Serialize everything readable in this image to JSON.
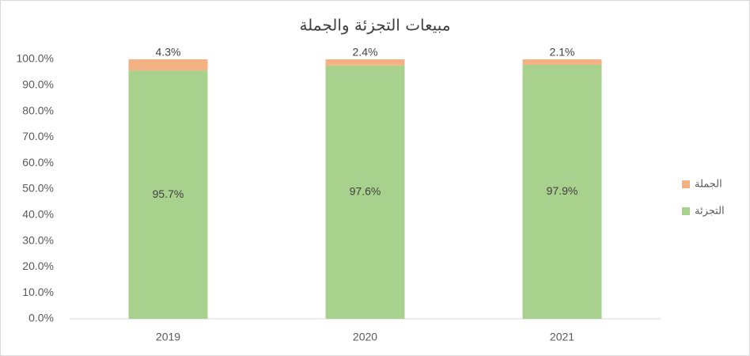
{
  "chart_data": {
    "type": "stacked_bar",
    "title": "مبيعات التجزئة والجملة",
    "categories": [
      "2019",
      "2020",
      "2021"
    ],
    "series": [
      {
        "name": "التجزئة",
        "color": "#a9d18e",
        "values": [
          95.7,
          97.6,
          97.9
        ],
        "value_labels": [
          "95.7%",
          "97.6%",
          "97.9%"
        ]
      },
      {
        "name": "الجملة",
        "color": "#f4b183",
        "values": [
          4.3,
          2.4,
          2.1
        ],
        "value_labels": [
          "4.3%",
          "2.4%",
          "2.1%"
        ]
      }
    ],
    "ylim": [
      0,
      100
    ],
    "yticks": [
      {
        "value": 0,
        "label": "0.0%"
      },
      {
        "value": 10,
        "label": "10.0%"
      },
      {
        "value": 20,
        "label": "20.0%"
      },
      {
        "value": 30,
        "label": "30.0%"
      },
      {
        "value": 40,
        "label": "40.0%"
      },
      {
        "value": 50,
        "label": "50.0%"
      },
      {
        "value": 60,
        "label": "60.0%"
      },
      {
        "value": 70,
        "label": "70.0%"
      },
      {
        "value": 80,
        "label": "80.0%"
      },
      {
        "value": 90,
        "label": "90.0%"
      },
      {
        "value": 100,
        "label": "100.0%"
      }
    ],
    "grid": false,
    "legend": "right"
  }
}
